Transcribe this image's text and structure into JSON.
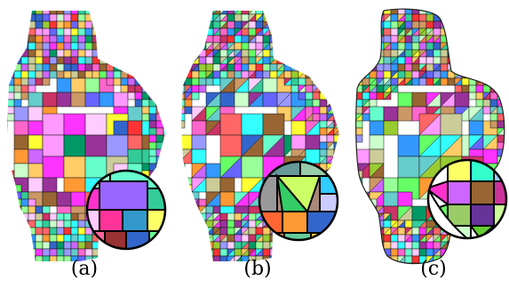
{
  "panels": [
    {
      "id": "a",
      "caption": "(a)",
      "style": "quad"
    },
    {
      "id": "b",
      "caption": "(b)",
      "style": "quad-tri"
    },
    {
      "id": "c",
      "caption": "(c)",
      "style": "quad-tri-smooth"
    }
  ],
  "palette": [
    "#ff66cc",
    "#66ff66",
    "#3399ff",
    "#ffff33",
    "#ff3333",
    "#33ffff",
    "#cc66ff",
    "#ff9933",
    "#99ff99",
    "#ff99ff",
    "#6666ff",
    "#ffcc66",
    "#66cccc",
    "#cc3366",
    "#99cc33",
    "#9999ff",
    "#ff6666",
    "#33cc99",
    "#cccc99",
    "#ff33ff",
    "#009966",
    "#996633",
    "#66ffcc",
    "#ccffcc",
    "#ffccff",
    "#3366cc",
    "#993399",
    "#cc9966"
  ]
}
